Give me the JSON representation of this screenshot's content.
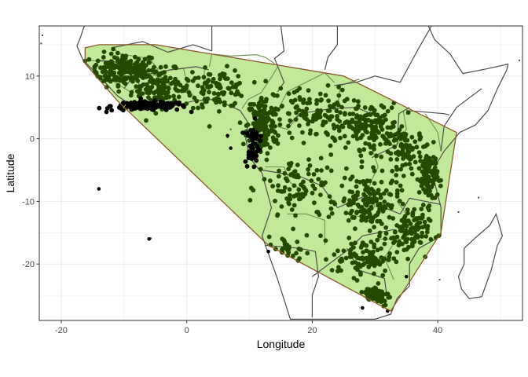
{
  "chart_data": {
    "type": "scatter",
    "title": "",
    "xlabel": "Longitude",
    "ylabel": "Latitude",
    "xlim": [
      -23.5,
      53.5
    ],
    "ylim": [
      -29,
      18
    ],
    "x_ticks": [
      -20,
      0,
      20,
      40
    ],
    "y_ticks": [
      10,
      0,
      -10,
      -20
    ],
    "x_tick_labels": [
      "-20",
      "0",
      "20",
      "40"
    ],
    "y_tick_labels": [
      "10",
      "0",
      "-10",
      "-20"
    ],
    "grid": true,
    "theme": "black-and-white",
    "colors": {
      "points_inside": "#234a00",
      "points_outside": "#000000",
      "hull_fill": "#c2e89a",
      "hull_edge": "#8b5a2b",
      "coastline": "#4d4d4d",
      "admin_borders": "#6f8f4f",
      "grid": "#ebebeb",
      "panel_border": "#333333"
    },
    "hull_polygon": [
      [
        -16.2,
        14.5
      ],
      [
        -14.0,
        15.0
      ],
      [
        -5.0,
        15.0
      ],
      [
        25.0,
        10.0
      ],
      [
        43.0,
        1.0
      ],
      [
        40.5,
        -15.0
      ],
      [
        32.5,
        -27.5
      ],
      [
        13.0,
        -17.0
      ],
      [
        -11.0,
        6.0
      ],
      [
        -16.2,
        12.0
      ]
    ],
    "point_clusters": [
      {
        "name": "",
        "center": [
          -10,
          11
        ],
        "spread": [
          4.5,
          2.2
        ],
        "n": 190,
        "color_key": "points_inside"
      },
      {
        "name": "",
        "center": [
          -4,
          8
        ],
        "spread": [
          4.0,
          2.5
        ],
        "n": 120,
        "color_key": "points_inside"
      },
      {
        "name": "",
        "center": [
          -6,
          5.2
        ],
        "spread": [
          5.0,
          0.6
        ],
        "n": 140,
        "color_key": "points_outside"
      },
      {
        "name": "",
        "center": [
          5,
          8
        ],
        "spread": [
          4.0,
          2.5
        ],
        "n": 100,
        "color_key": "points_inside"
      },
      {
        "name": "",
        "center": [
          12,
          2
        ],
        "spread": [
          2.0,
          4.0
        ],
        "n": 160,
        "color_key": "points_inside"
      },
      {
        "name": "",
        "center": [
          10.5,
          -1
        ],
        "spread": [
          1.0,
          3.0
        ],
        "n": 50,
        "color_key": "points_outside"
      },
      {
        "name": "",
        "center": [
          20,
          4
        ],
        "spread": [
          5.0,
          3.5
        ],
        "n": 120,
        "color_key": "points_inside"
      },
      {
        "name": "",
        "center": [
          29,
          2
        ],
        "spread": [
          4.0,
          3.0
        ],
        "n": 150,
        "color_key": "points_inside"
      },
      {
        "name": "",
        "center": [
          35,
          -2
        ],
        "spread": [
          3.0,
          3.0
        ],
        "n": 90,
        "color_key": "points_inside"
      },
      {
        "name": "",
        "center": [
          38.5,
          -6
        ],
        "spread": [
          1.2,
          3.5
        ],
        "n": 110,
        "color_key": "points_inside"
      },
      {
        "name": "",
        "center": [
          18,
          -8
        ],
        "spread": [
          5.0,
          5.0
        ],
        "n": 100,
        "color_key": "points_inside"
      },
      {
        "name": "",
        "center": [
          29,
          -10
        ],
        "spread": [
          4.0,
          3.5
        ],
        "n": 140,
        "color_key": "points_inside"
      },
      {
        "name": "",
        "center": [
          35,
          -15
        ],
        "spread": [
          3.0,
          3.0
        ],
        "n": 110,
        "color_key": "points_inside"
      },
      {
        "name": "",
        "center": [
          28,
          -19
        ],
        "spread": [
          4.0,
          2.5
        ],
        "n": 90,
        "color_key": "points_inside"
      },
      {
        "name": "",
        "center": [
          30,
          -25
        ],
        "spread": [
          2.0,
          1.5
        ],
        "n": 70,
        "color_key": "points_inside"
      },
      {
        "name": "",
        "center": [
          16,
          -18
        ],
        "spread": [
          2.5,
          2.0
        ],
        "n": 40,
        "color_key": "points_inside"
      }
    ],
    "outlier_points": [
      [
        -14,
        -8
      ],
      [
        -6,
        -16
      ],
      [
        6.5,
        0.5
      ],
      [
        7,
        -1.5
      ],
      [
        13,
        -18
      ],
      [
        28,
        -27
      ],
      [
        32,
        -27.5
      ],
      [
        35,
        -22
      ]
    ],
    "coastline": [
      [
        -17.5,
        14.8
      ],
      [
        -16.5,
        12.5
      ],
      [
        -13.5,
        9.5
      ],
      [
        -11.0,
        6.8
      ],
      [
        -7.5,
        4.5
      ],
      [
        -3.0,
        5.0
      ],
      [
        1.0,
        6.0
      ],
      [
        4.5,
        6.3
      ],
      [
        8.5,
        4.5
      ],
      [
        9.8,
        2.5
      ],
      [
        9.4,
        0.0
      ],
      [
        10.0,
        -3.0
      ],
      [
        12.0,
        -5.5
      ],
      [
        13.5,
        -11.0
      ],
      [
        12.0,
        -15.5
      ],
      [
        14.5,
        -22.5
      ],
      [
        16.5,
        -28.8
      ],
      [
        18.5,
        -28.8
      ],
      [
        20.0,
        -28.8
      ],
      [
        30.0,
        -28.8
      ],
      [
        32.5,
        -28.0
      ],
      [
        33.5,
        -25.5
      ],
      [
        35.5,
        -23.5
      ],
      [
        35.5,
        -20.0
      ],
      [
        37.0,
        -17.5
      ],
      [
        40.5,
        -15.5
      ],
      [
        40.5,
        -11.0
      ],
      [
        39.5,
        -7.0
      ],
      [
        39.5,
        -4.5
      ],
      [
        41.0,
        -2.0
      ],
      [
        43.5,
        1.0
      ],
      [
        46.0,
        2.2
      ],
      [
        48.0,
        4.5
      ],
      [
        49.5,
        8.0
      ],
      [
        51.0,
        11.0
      ],
      [
        51.2,
        11.9
      ],
      [
        48.0,
        11.2
      ],
      [
        44.0,
        10.4
      ],
      [
        43.2,
        11.6
      ],
      [
        42.0,
        13.5
      ],
      [
        39.5,
        15.8
      ],
      [
        38.5,
        18.0
      ]
    ],
    "coastline_north": [
      [
        -17.5,
        14.8
      ],
      [
        -17.0,
        16.0
      ],
      [
        -16.5,
        17.5
      ],
      [
        -16.3,
        18.0
      ]
    ],
    "interior_borders": [
      [
        [
          -12,
          14.5
        ],
        [
          -7,
          15.5
        ],
        [
          -3,
          13.8
        ],
        [
          1,
          15.0
        ],
        [
          4,
          14.0
        ]
      ],
      [
        [
          4,
          14.0
        ],
        [
          4,
          18.0
        ]
      ],
      [
        [
          15,
          18.0
        ],
        [
          15.5,
          14.0
        ],
        [
          14,
          12.8
        ],
        [
          15.5,
          9.0
        ],
        [
          14.5,
          7.5
        ]
      ],
      [
        [
          24,
          18.0
        ],
        [
          24,
          15.0
        ],
        [
          22.5,
          13.0
        ],
        [
          22,
          11.0
        ]
      ],
      [
        [
          23.5,
          8.5
        ],
        [
          27,
          9.0
        ],
        [
          30,
          10.0
        ],
        [
          34,
          9.0
        ],
        [
          37,
          14.5
        ],
        [
          39,
          18.0
        ]
      ],
      [
        [
          16,
          2.0
        ],
        [
          18,
          4.0
        ],
        [
          23,
          4.8
        ],
        [
          27,
          5.0
        ],
        [
          30.5,
          3.5
        ]
      ],
      [
        [
          12,
          -5.0
        ],
        [
          18,
          -6.0
        ],
        [
          21.5,
          -7.5
        ],
        [
          24,
          -11.0
        ],
        [
          30,
          -8.5
        ]
      ],
      [
        [
          12.5,
          -17.0
        ],
        [
          18,
          -17.5
        ],
        [
          20.5,
          -18.0
        ],
        [
          21,
          -22.0
        ],
        [
          20,
          -25.0
        ],
        [
          20,
          -28.5
        ]
      ],
      [
        [
          20,
          -22.0
        ],
        [
          26,
          -17.5
        ],
        [
          28,
          -15.5
        ],
        [
          33,
          -14.5
        ]
      ],
      [
        [
          29.5,
          -3.0
        ],
        [
          33.5,
          -1.0
        ],
        [
          33.8,
          4.0
        ],
        [
          35.5,
          5.0
        ]
      ],
      [
        [
          35,
          4.5
        ],
        [
          41,
          4.0
        ],
        [
          41.8,
          3.8
        ]
      ],
      [
        [
          31.5,
          -11.0
        ],
        [
          34,
          -12.0
        ],
        [
          35.5,
          -9.5
        ],
        [
          40.5,
          -10.5
        ]
      ],
      [
        [
          40.5,
          -2.0
        ],
        [
          41.0,
          2.0
        ],
        [
          43.0,
          5.0
        ],
        [
          47.0,
          8.0
        ]
      ],
      [
        [
          -10.0,
          8.0
        ],
        [
          -8.5,
          10.0
        ],
        [
          -5.0,
          10.5
        ],
        [
          -2.5,
          11.0
        ],
        [
          1.5,
          11.5
        ],
        [
          3.5,
          11.0
        ]
      ],
      [
        [
          -14.0,
          12.5
        ],
        [
          -11.5,
          12.3
        ],
        [
          -8.5,
          10.5
        ],
        [
          -7.5,
          8.5
        ]
      ],
      [
        [
          25.5,
          -17.5
        ],
        [
          27.5,
          -21.0
        ],
        [
          31.5,
          -22.3
        ],
        [
          31.8,
          -24.5
        ]
      ]
    ],
    "admin_borders": [
      [
        [
          -15.5,
          12.5
        ],
        [
          -12.0,
          12.3
        ],
        [
          -11.5,
          9.0
        ],
        [
          -9.0,
          7.5
        ],
        [
          -7.5,
          8.5
        ]
      ],
      [
        [
          -8.5,
          10.0
        ],
        [
          -5.5,
          10.2
        ],
        [
          -3.0,
          9.5
        ],
        [
          -2.8,
          5.5
        ]
      ],
      [
        [
          -2.8,
          11.0
        ],
        [
          -0.5,
          11.2
        ],
        [
          0.2,
          8.0
        ],
        [
          1.5,
          6.3
        ]
      ],
      [
        [
          2.8,
          11.0
        ],
        [
          2.7,
          6.3
        ]
      ],
      [
        [
          3.6,
          11.5
        ],
        [
          4.0,
          13.5
        ],
        [
          7.0,
          13.2
        ],
        [
          11.0,
          13.4
        ],
        [
          12.5,
          13.0
        ],
        [
          14.0,
          12.0
        ]
      ],
      [
        [
          8.8,
          4.8
        ],
        [
          9.8,
          6.3
        ],
        [
          11.8,
          7.3
        ],
        [
          13.5,
          9.8
        ],
        [
          14.5,
          11.5
        ]
      ],
      [
        [
          10.0,
          2.2
        ],
        [
          13.5,
          2.2
        ],
        [
          16.0,
          1.5
        ],
        [
          18.0,
          3.8
        ]
      ],
      [
        [
          14.5,
          4.5
        ],
        [
          16.0,
          7.5
        ],
        [
          19.0,
          9.0
        ],
        [
          22.0,
          10.5
        ],
        [
          23.5,
          9.0
        ]
      ],
      [
        [
          24.0,
          5.0
        ],
        [
          24.5,
          8.5
        ],
        [
          27.5,
          9.5
        ]
      ],
      [
        [
          29.5,
          -1.5
        ],
        [
          30.5,
          -4.5
        ],
        [
          29.5,
          -6.5
        ],
        [
          29.0,
          -8.0
        ],
        [
          30.0,
          -11.0
        ]
      ],
      [
        [
          30.8,
          -1.0
        ],
        [
          33.5,
          -1.0
        ],
        [
          35.0,
          1.5
        ],
        [
          34.5,
          4.5
        ]
      ],
      [
        [
          33.5,
          -10.0
        ],
        [
          35.0,
          -12.0
        ],
        [
          35.0,
          -16.0
        ],
        [
          33.0,
          -16.0
        ],
        [
          30.5,
          -16.0
        ]
      ],
      [
        [
          33.0,
          -22.5
        ],
        [
          31.5,
          -19.0
        ],
        [
          32.8,
          -17.0
        ]
      ],
      [
        [
          16.0,
          -12.0
        ],
        [
          19.0,
          -12.0
        ],
        [
          22.0,
          -13.0
        ],
        [
          22.0,
          -17.0
        ]
      ],
      [
        [
          12.5,
          -4.5
        ],
        [
          15.5,
          -4.5
        ],
        [
          16.5,
          -7.0
        ],
        [
          18.0,
          -8.0
        ]
      ],
      [
        [
          25.5,
          -12.0
        ],
        [
          28.0,
          -12.5
        ],
        [
          29.5,
          -13.5
        ]
      ],
      [
        [
          38.0,
          4.0
        ],
        [
          40.0,
          1.0
        ],
        [
          40.5,
          -2.0
        ]
      ],
      [
        [
          -4.5,
          11.0
        ],
        [
          -6.0,
          12.8
        ],
        [
          -10.5,
          13.5
        ],
        [
          -12.0,
          14.5
        ]
      ]
    ],
    "madagascar": [
      [
        43.3,
        -22.0
      ],
      [
        43.8,
        -24.0
      ],
      [
        45.0,
        -25.5
      ],
      [
        47.0,
        -25.2
      ],
      [
        48.5,
        -21.0
      ],
      [
        49.5,
        -17.0
      ],
      [
        50.3,
        -15.5
      ],
      [
        49.3,
        -12.0
      ],
      [
        48.3,
        -13.8
      ],
      [
        46.0,
        -15.8
      ],
      [
        44.2,
        -17.5
      ],
      [
        44.2,
        -20.0
      ],
      [
        43.3,
        -22.0
      ]
    ],
    "small_islands": [
      [
        -23.0,
        16.5
      ],
      [
        -23.2,
        15.2
      ],
      [
        -14.0,
        -8.0
      ],
      [
        -5.7,
        -15.9
      ],
      [
        7.0,
        1.5
      ],
      [
        6.5,
        0.2
      ],
      [
        55.5,
        -4.7
      ],
      [
        57.5,
        -20.2
      ],
      [
        43.3,
        -11.7
      ],
      [
        40.3,
        -22.5
      ],
      [
        53.0,
        12.5
      ],
      [
        46.5,
        -9.4
      ]
    ]
  }
}
